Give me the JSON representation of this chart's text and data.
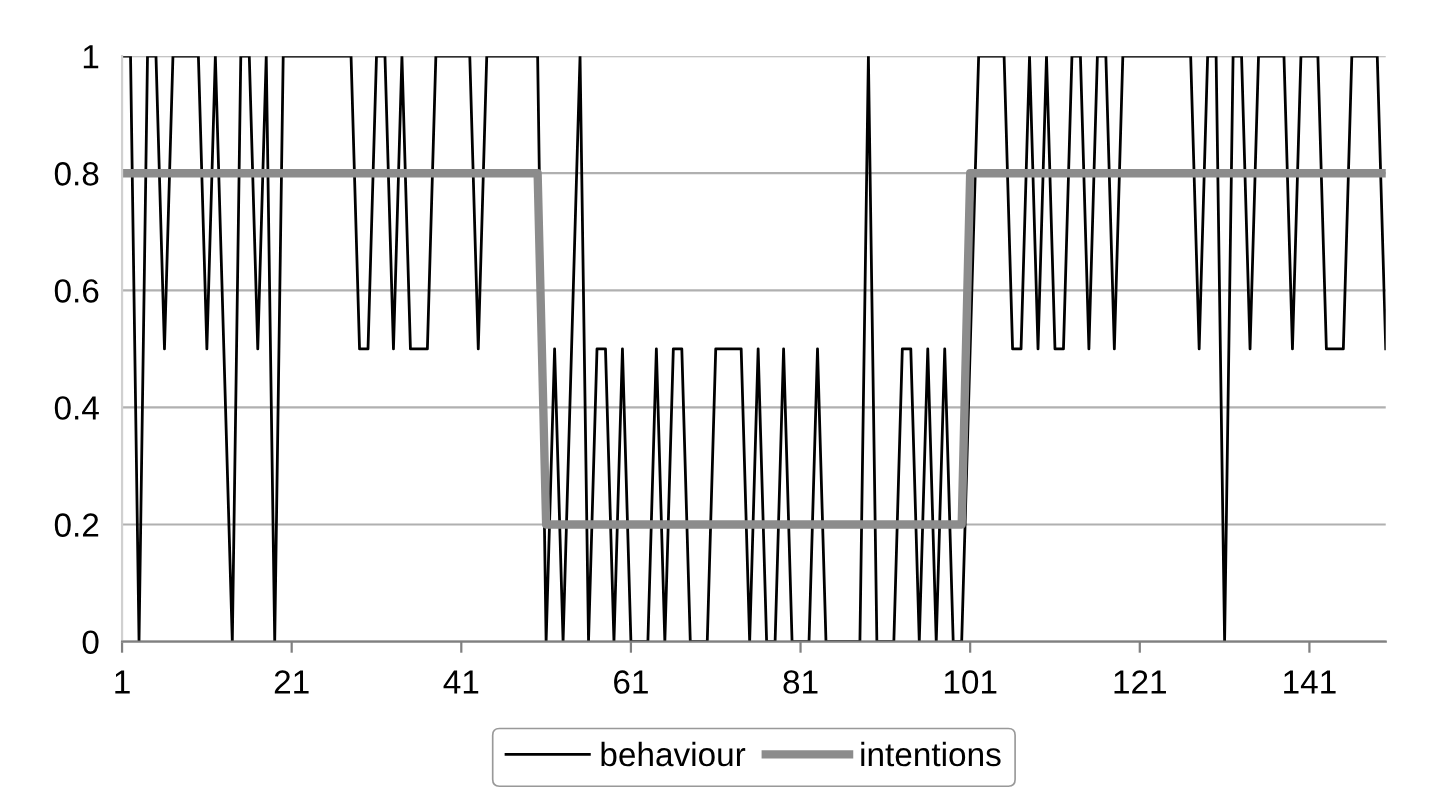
{
  "chart_data": {
    "type": "line",
    "x": [
      1,
      2,
      3,
      4,
      5,
      6,
      7,
      8,
      9,
      10,
      11,
      12,
      13,
      14,
      15,
      16,
      17,
      18,
      19,
      20,
      21,
      22,
      23,
      24,
      25,
      26,
      27,
      28,
      29,
      30,
      31,
      32,
      33,
      34,
      35,
      36,
      37,
      38,
      39,
      40,
      41,
      42,
      43,
      44,
      45,
      46,
      47,
      48,
      49,
      50,
      51,
      52,
      53,
      54,
      55,
      56,
      57,
      58,
      59,
      60,
      61,
      62,
      63,
      64,
      65,
      66,
      67,
      68,
      69,
      70,
      71,
      72,
      73,
      74,
      75,
      76,
      77,
      78,
      79,
      80,
      81,
      82,
      83,
      84,
      85,
      86,
      87,
      88,
      89,
      90,
      91,
      92,
      93,
      94,
      95,
      96,
      97,
      98,
      99,
      100,
      101,
      102,
      103,
      104,
      105,
      106,
      107,
      108,
      109,
      110,
      111,
      112,
      113,
      114,
      115,
      116,
      117,
      118,
      119,
      120,
      121,
      122,
      123,
      124,
      125,
      126,
      127,
      128,
      129,
      130,
      131,
      132,
      133,
      134,
      135,
      136,
      137,
      138,
      139,
      140,
      141,
      142,
      143,
      144,
      145,
      146,
      147,
      148,
      149,
      150
    ],
    "series": [
      {
        "name": "behaviour",
        "color": "#000000",
        "values": [
          1,
          1,
          0,
          1,
          1,
          0.5,
          1,
          1,
          1,
          1,
          0.5,
          1,
          0.5,
          0,
          1,
          1,
          0.5,
          1,
          0,
          1,
          1,
          1,
          1,
          1,
          1,
          1,
          1,
          1,
          0.5,
          0.5,
          1,
          1,
          0.5,
          1,
          0.5,
          0.5,
          0.5,
          1,
          1,
          1,
          1,
          1,
          0.5,
          1,
          1,
          1,
          1,
          1,
          1,
          1,
          0,
          0.5,
          0,
          0.5,
          1,
          0,
          0.5,
          0.5,
          0,
          0.5,
          0,
          0,
          0,
          0.5,
          0,
          0.5,
          0.5,
          0,
          0,
          0,
          0.5,
          0.5,
          0.5,
          0.5,
          0,
          0.5,
          0,
          0,
          0.5,
          0,
          0,
          0,
          0.5,
          0,
          0,
          0,
          0,
          0,
          1,
          0,
          0,
          0,
          0.5,
          0.5,
          0,
          0.5,
          0,
          0.5,
          0,
          0,
          0.5,
          1,
          1,
          1,
          1,
          0.5,
          0.5,
          1,
          0.5,
          1,
          0.5,
          0.5,
          1,
          1,
          0.5,
          1,
          1,
          0.5,
          1,
          1,
          1,
          1,
          1,
          1,
          1,
          1,
          1,
          0.5,
          1,
          1,
          0,
          1,
          1,
          0.5,
          1,
          1,
          1,
          1,
          0.5,
          1,
          1,
          1,
          0.5,
          0.5,
          0.5,
          1,
          1,
          1,
          1,
          0.5
        ]
      },
      {
        "name": "intentions",
        "color": "#8c8c8c",
        "values": [
          0.8,
          0.8,
          0.8,
          0.8,
          0.8,
          0.8,
          0.8,
          0.8,
          0.8,
          0.8,
          0.8,
          0.8,
          0.8,
          0.8,
          0.8,
          0.8,
          0.8,
          0.8,
          0.8,
          0.8,
          0.8,
          0.8,
          0.8,
          0.8,
          0.8,
          0.8,
          0.8,
          0.8,
          0.8,
          0.8,
          0.8,
          0.8,
          0.8,
          0.8,
          0.8,
          0.8,
          0.8,
          0.8,
          0.8,
          0.8,
          0.8,
          0.8,
          0.8,
          0.8,
          0.8,
          0.8,
          0.8,
          0.8,
          0.8,
          0.8,
          0.2,
          0.2,
          0.2,
          0.2,
          0.2,
          0.2,
          0.2,
          0.2,
          0.2,
          0.2,
          0.2,
          0.2,
          0.2,
          0.2,
          0.2,
          0.2,
          0.2,
          0.2,
          0.2,
          0.2,
          0.2,
          0.2,
          0.2,
          0.2,
          0.2,
          0.2,
          0.2,
          0.2,
          0.2,
          0.2,
          0.2,
          0.2,
          0.2,
          0.2,
          0.2,
          0.2,
          0.2,
          0.2,
          0.2,
          0.2,
          0.2,
          0.2,
          0.2,
          0.2,
          0.2,
          0.2,
          0.2,
          0.2,
          0.2,
          0.2,
          0.8,
          0.8,
          0.8,
          0.8,
          0.8,
          0.8,
          0.8,
          0.8,
          0.8,
          0.8,
          0.8,
          0.8,
          0.8,
          0.8,
          0.8,
          0.8,
          0.8,
          0.8,
          0.8,
          0.8,
          0.8,
          0.8,
          0.8,
          0.8,
          0.8,
          0.8,
          0.8,
          0.8,
          0.8,
          0.8,
          0.8,
          0.8,
          0.8,
          0.8,
          0.8,
          0.8,
          0.8,
          0.8,
          0.8,
          0.8,
          0.8,
          0.8,
          0.8,
          0.8,
          0.8,
          0.8,
          0.8,
          0.8,
          0.8,
          0.8
        ]
      }
    ],
    "xlim": [
      1,
      150
    ],
    "xticks": [
      1,
      21,
      41,
      61,
      81,
      101,
      121,
      141
    ],
    "ylim": [
      0,
      1
    ],
    "yticks": [
      0,
      0.2,
      0.4,
      0.6,
      0.8,
      1
    ],
    "grid": "y",
    "legend": "bottom",
    "marker": "none",
    "line_style": "solid"
  }
}
